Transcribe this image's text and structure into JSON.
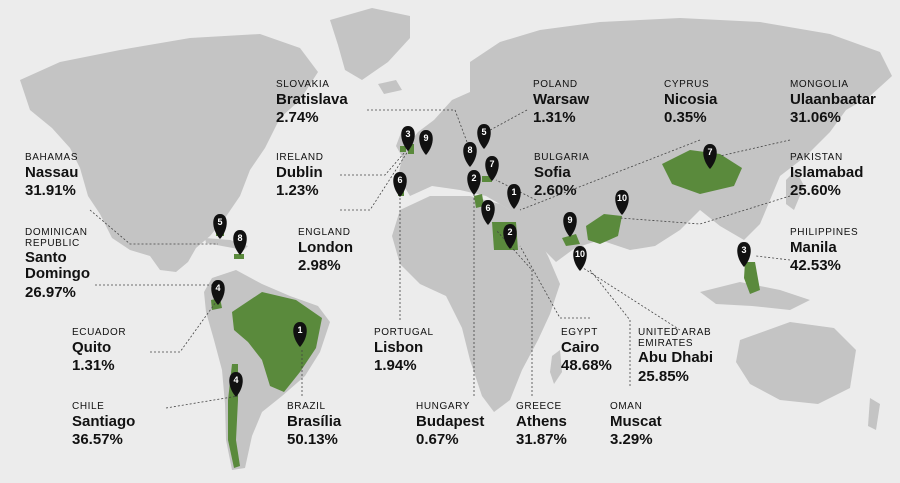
{
  "labels": [
    {
      "id": "slovakia",
      "country": "SLOVAKIA",
      "city": "Bratislava",
      "pct": "2.74%"
    },
    {
      "id": "poland",
      "country": "POLAND",
      "city": "Warsaw",
      "pct": "1.31%"
    },
    {
      "id": "cyprus",
      "country": "CYPRUS",
      "city": "Nicosia",
      "pct": "0.35%"
    },
    {
      "id": "mongolia",
      "country": "MONGOLIA",
      "city": "Ulaanbaatar",
      "pct": "31.06%"
    },
    {
      "id": "bahamas",
      "country": "BAHAMAS",
      "city": "Nassau",
      "pct": "31.91%"
    },
    {
      "id": "ireland",
      "country": "IRELAND",
      "city": "Dublin",
      "pct": "1.23%"
    },
    {
      "id": "bulgaria",
      "country": "BULGARIA",
      "city": "Sofia",
      "pct": "2.60%"
    },
    {
      "id": "pakistan",
      "country": "PAKISTAN",
      "city": "Islamabad",
      "pct": "25.60%"
    },
    {
      "id": "dominican",
      "country": "DOMINICAN REPUBLIC",
      "city": "Santo Domingo",
      "pct": "26.97%"
    },
    {
      "id": "england",
      "country": "ENGLAND",
      "city": "London",
      "pct": "2.98%"
    },
    {
      "id": "philippines",
      "country": "PHILIPPINES",
      "city": "Manila",
      "pct": "42.53%"
    },
    {
      "id": "ecuador",
      "country": "ECUADOR",
      "city": "Quito",
      "pct": "1.31%"
    },
    {
      "id": "portugal",
      "country": "PORTUGAL",
      "city": "Lisbon",
      "pct": "1.94%"
    },
    {
      "id": "egypt",
      "country": "EGYPT",
      "city": "Cairo",
      "pct": "48.68%"
    },
    {
      "id": "uae",
      "country": "UNITED ARAB EMIRATES",
      "city": "Abu Dhabi",
      "pct": "25.85%"
    },
    {
      "id": "chile",
      "country": "CHILE",
      "city": "Santiago",
      "pct": "36.57%"
    },
    {
      "id": "brazil",
      "country": "BRAZIL",
      "city": "Brasília",
      "pct": "50.13%"
    },
    {
      "id": "hungary",
      "country": "HUNGARY",
      "city": "Budapest",
      "pct": "0.67%"
    },
    {
      "id": "greece",
      "country": "GREECE",
      "city": "Athens",
      "pct": "31.87%"
    },
    {
      "id": "oman",
      "country": "OMAN",
      "city": "Muscat",
      "pct": "3.29%"
    }
  ],
  "pins": [
    {
      "id": "ireland",
      "num": "3"
    },
    {
      "id": "england",
      "num": "9"
    },
    {
      "id": "poland",
      "num": "5"
    },
    {
      "id": "slovakia",
      "num": "8"
    },
    {
      "id": "hungary",
      "num": "2"
    },
    {
      "id": "bulgaria",
      "num": "7"
    },
    {
      "id": "portugal",
      "num": "6"
    },
    {
      "id": "cyprus",
      "num": "1"
    },
    {
      "id": "greece",
      "num": "6"
    },
    {
      "id": "egypt",
      "num": "2"
    },
    {
      "id": "uae",
      "num": "9"
    },
    {
      "id": "oman",
      "num": "10"
    },
    {
      "id": "pakistan",
      "num": "10"
    },
    {
      "id": "mongolia",
      "num": "7"
    },
    {
      "id": "philippines",
      "num": "3"
    },
    {
      "id": "bahamas",
      "num": "5"
    },
    {
      "id": "dominican",
      "num": "8"
    },
    {
      "id": "ecuador",
      "num": "4"
    },
    {
      "id": "brazil",
      "num": "1"
    },
    {
      "id": "chile",
      "num": "4"
    }
  ],
  "colors": {
    "highlight": "#5a8a3c",
    "land": "#c4c4c4",
    "background": "#ececec",
    "pin": "#111111"
  }
}
